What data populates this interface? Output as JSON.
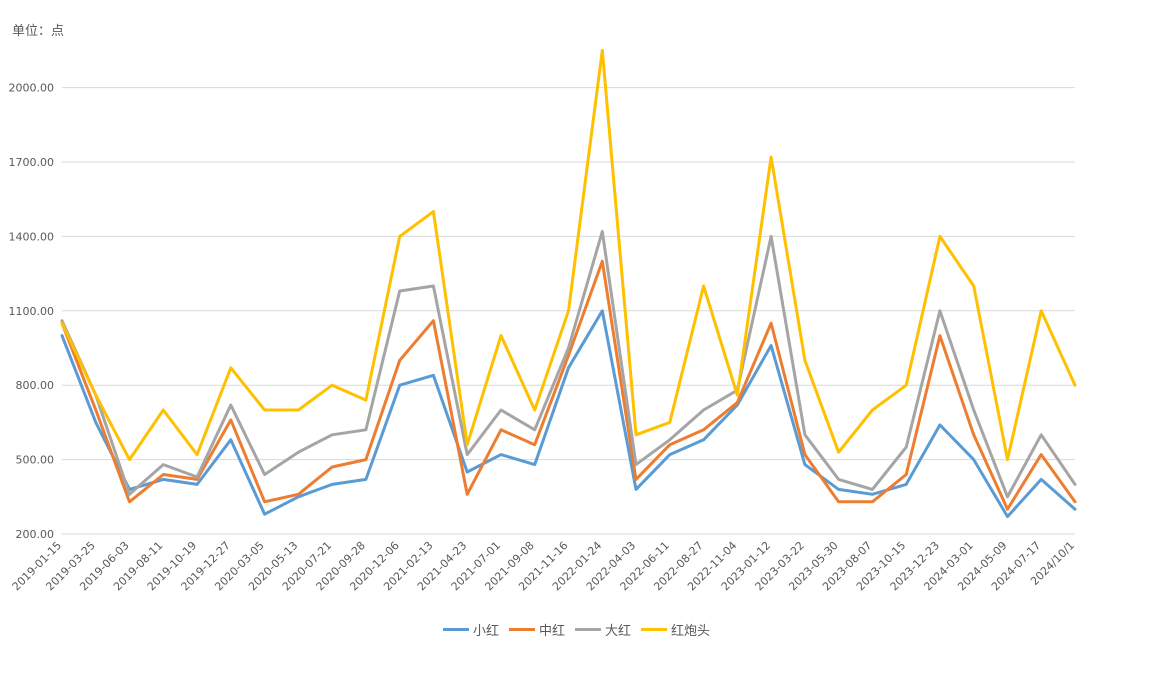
{
  "chart_data": {
    "type": "line",
    "unit_label": "单位：点",
    "yticks": [
      "200.00",
      "500.00",
      "800.00",
      "1100.00",
      "1400.00",
      "1700.00",
      "2000.00"
    ],
    "ylim": [
      200,
      2200
    ],
    "grid": true,
    "legend_position": "bottom",
    "x": [
      "2019-01-15",
      "2019-03-25",
      "2019-06-03",
      "2019-08-11",
      "2019-10-19",
      "2019-12-27",
      "2020-03-05",
      "2020-05-13",
      "2020-07-21",
      "2020-09-28",
      "2020-12-06",
      "2021-02-13",
      "2021-04-23",
      "2021-07-01",
      "2021-09-08",
      "2021-11-16",
      "2022-01-24",
      "2022-04-03",
      "2022-06-11",
      "2022-08-27",
      "2022-11-04",
      "2023-01-12",
      "2023-03-22",
      "2023-05-30",
      "2023-08-07",
      "2023-10-15",
      "2023-12-23",
      "2024-03-01",
      "2024-05-09",
      "2024-07-17",
      "2024/10/1"
    ],
    "series": [
      {
        "name": "小红",
        "color": "#5B9BD5",
        "values": [
          1000,
          650,
          380,
          420,
          400,
          580,
          280,
          350,
          400,
          420,
          800,
          840,
          450,
          520,
          480,
          870,
          1100,
          380,
          520,
          580,
          720,
          960,
          480,
          380,
          360,
          400,
          640,
          500,
          270,
          420,
          300
        ]
      },
      {
        "name": "中红",
        "color": "#ED7D31",
        "values": [
          1050,
          700,
          330,
          440,
          420,
          660,
          330,
          360,
          470,
          500,
          900,
          1060,
          360,
          620,
          560,
          920,
          1300,
          420,
          560,
          620,
          730,
          1050,
          520,
          330,
          330,
          440,
          1000,
          600,
          300,
          520,
          330
        ]
      },
      {
        "name": "大红",
        "color": "#A5A5A5",
        "values": [
          1060,
          760,
          360,
          480,
          430,
          720,
          440,
          530,
          600,
          620,
          1180,
          1200,
          520,
          700,
          620,
          950,
          1420,
          480,
          580,
          700,
          780,
          1400,
          600,
          420,
          380,
          550,
          1100,
          700,
          350,
          600,
          400
        ]
      },
      {
        "name": "红炮头",
        "color": "#FFC000",
        "values": [
          1050,
          760,
          500,
          700,
          520,
          870,
          700,
          700,
          800,
          740,
          1400,
          1500,
          560,
          1000,
          700,
          1100,
          2150,
          600,
          650,
          1200,
          760,
          1720,
          900,
          530,
          700,
          800,
          1400,
          1200,
          500,
          1100,
          800
        ]
      }
    ]
  }
}
